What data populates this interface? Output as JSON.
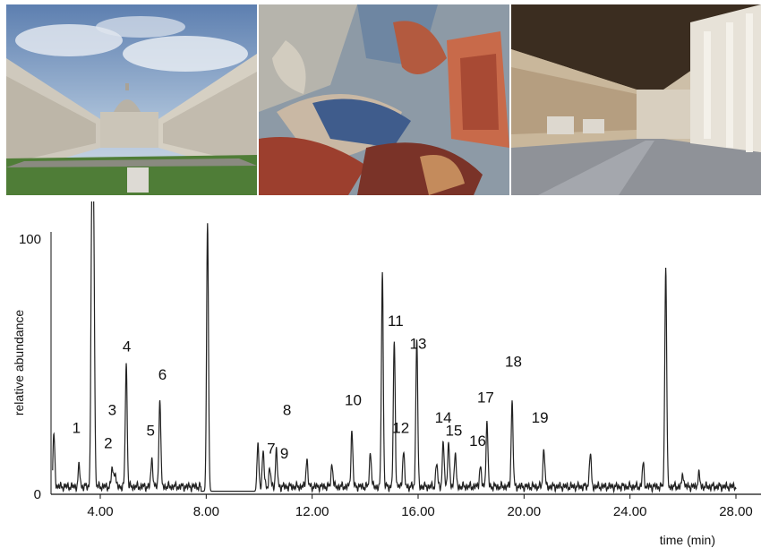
{
  "photos": [
    {
      "name": "Camposanto courtyard photo"
    },
    {
      "name": "Fresco detail photo"
    },
    {
      "name": "Cloister corridor photo"
    }
  ],
  "chart_data": {
    "type": "line",
    "xlabel": "time (min)",
    "ylabel": "relative abundance",
    "xlim": [
      2.2,
      28.0
    ],
    "ylim": [
      0,
      100
    ],
    "x_ticks": [
      4.0,
      8.0,
      12.0,
      16.0,
      20.0,
      24.0,
      28.0
    ],
    "x_tick_labels": [
      "4.00",
      "8.00",
      "12.00",
      "16.00",
      "20.00",
      "24.00",
      "28.00"
    ],
    "y_ticks": [
      0,
      100
    ],
    "y_tick_labels": [
      "0",
      "100"
    ],
    "grid": false,
    "baseline": 3,
    "peaks": [
      {
        "t": 2.25,
        "h": 20
      },
      {
        "t": 3.2,
        "h": 8
      },
      {
        "t": 3.68,
        "h": 100
      },
      {
        "t": 3.75,
        "h": 100
      },
      {
        "t": 4.45,
        "h": 7
      },
      {
        "t": 4.55,
        "h": 6
      },
      {
        "t": 4.98,
        "h": 48
      },
      {
        "t": 5.95,
        "h": 11
      },
      {
        "t": 6.25,
        "h": 35
      },
      {
        "t": 8.05,
        "h": 105
      },
      {
        "t": 9.95,
        "h": 16
      },
      {
        "t": 10.15,
        "h": 14
      },
      {
        "t": 10.4,
        "h": 7
      },
      {
        "t": 10.65,
        "h": 14
      },
      {
        "t": 11.8,
        "h": 11
      },
      {
        "t": 12.75,
        "h": 9
      },
      {
        "t": 13.5,
        "h": 22
      },
      {
        "t": 14.2,
        "h": 14
      },
      {
        "t": 14.65,
        "h": 84
      },
      {
        "t": 15.1,
        "h": 57
      },
      {
        "t": 15.45,
        "h": 14
      },
      {
        "t": 15.95,
        "h": 58
      },
      {
        "t": 16.7,
        "h": 9
      },
      {
        "t": 16.95,
        "h": 17
      },
      {
        "t": 17.15,
        "h": 17
      },
      {
        "t": 17.4,
        "h": 13
      },
      {
        "t": 18.35,
        "h": 8
      },
      {
        "t": 18.6,
        "h": 25
      },
      {
        "t": 19.55,
        "h": 33
      },
      {
        "t": 20.75,
        "h": 15
      },
      {
        "t": 22.5,
        "h": 13
      },
      {
        "t": 24.5,
        "h": 9
      },
      {
        "t": 25.35,
        "h": 86
      },
      {
        "t": 26.0,
        "h": 5
      },
      {
        "t": 26.6,
        "h": 5
      }
    ],
    "annotations": [
      {
        "label": "1",
        "t": 3.1,
        "y": 24
      },
      {
        "label": "2",
        "t": 4.3,
        "y": 18
      },
      {
        "label": "3",
        "t": 4.45,
        "y": 31
      },
      {
        "label": "4",
        "t": 5.0,
        "y": 56
      },
      {
        "label": "5",
        "t": 5.9,
        "y": 23
      },
      {
        "label": "6",
        "t": 6.35,
        "y": 45
      },
      {
        "label": "7",
        "t": 10.45,
        "y": 16
      },
      {
        "label": "8",
        "t": 11.05,
        "y": 31
      },
      {
        "label": "9",
        "t": 10.95,
        "y": 14
      },
      {
        "label": "10",
        "t": 13.55,
        "y": 35
      },
      {
        "label": "11",
        "t": 15.15,
        "y": 66
      },
      {
        "label": "12",
        "t": 15.35,
        "y": 24
      },
      {
        "label": "13",
        "t": 16.0,
        "y": 57
      },
      {
        "label": "14",
        "t": 16.95,
        "y": 28
      },
      {
        "label": "15",
        "t": 17.35,
        "y": 23
      },
      {
        "label": "16",
        "t": 18.25,
        "y": 19
      },
      {
        "label": "17",
        "t": 18.55,
        "y": 36
      },
      {
        "label": "18",
        "t": 19.6,
        "y": 50
      },
      {
        "label": "19",
        "t": 20.6,
        "y": 28
      }
    ]
  }
}
